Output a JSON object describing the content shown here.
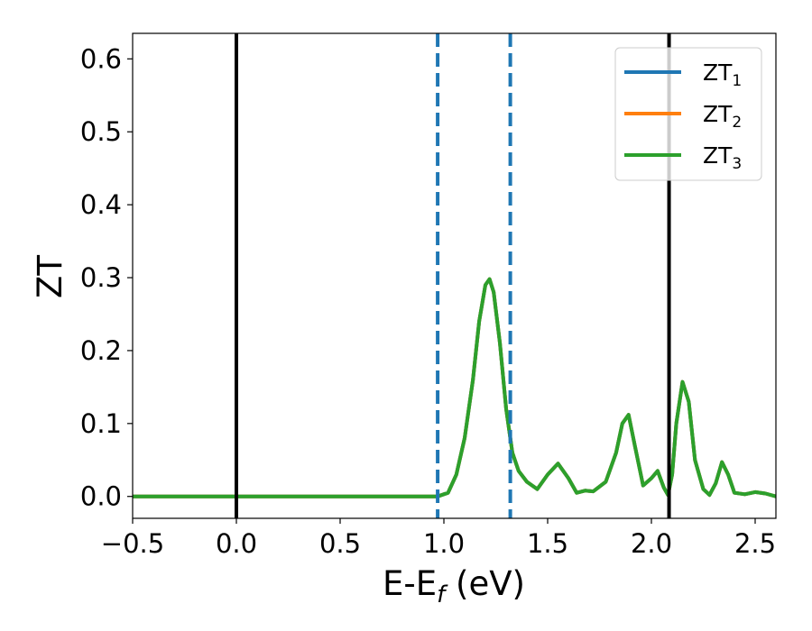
{
  "chart_data": {
    "type": "line",
    "title": "",
    "xlabel": "E-E",
    "xlabel_sub": "f",
    "xlabel_units": " (eV)",
    "ylabel": "ZT",
    "xlim": [
      -0.5,
      2.6
    ],
    "ylim": [
      -0.03,
      0.635
    ],
    "xticks": [
      -0.5,
      0.0,
      0.5,
      1.0,
      1.5,
      2.0,
      2.5
    ],
    "xtick_labels": [
      "−0.5",
      "0.0",
      "0.5",
      "1.0",
      "1.5",
      "2.0",
      "2.5"
    ],
    "yticks": [
      0.0,
      0.1,
      0.2,
      0.3,
      0.4,
      0.5,
      0.6
    ],
    "ytick_labels": [
      "0.0",
      "0.1",
      "0.2",
      "0.3",
      "0.4",
      "0.5",
      "0.6"
    ],
    "grid": false,
    "legend_position": "upper right",
    "series": [
      {
        "name": "ZT",
        "sub": "1",
        "color": "#1f77b4",
        "x": [
          -0.5,
          0.0,
          0.5,
          0.97,
          1.02,
          1.06,
          1.1,
          1.14,
          1.17,
          1.2,
          1.22,
          1.24,
          1.27,
          1.3,
          1.33,
          1.36,
          1.4,
          1.45,
          1.5,
          1.55,
          1.6,
          1.64,
          1.68,
          1.72,
          1.78,
          1.83,
          1.86,
          1.89,
          1.92,
          1.96,
          2.0,
          2.03,
          2.06,
          2.08,
          2.1,
          2.12,
          2.15,
          2.18,
          2.21,
          2.25,
          2.28,
          2.31,
          2.34,
          2.37,
          2.4,
          2.45,
          2.5,
          2.55,
          2.6
        ],
        "y": [
          0.0,
          0.0,
          0.0,
          0.0,
          0.005,
          0.03,
          0.08,
          0.16,
          0.24,
          0.29,
          0.298,
          0.28,
          0.21,
          0.12,
          0.06,
          0.035,
          0.02,
          0.01,
          0.03,
          0.045,
          0.025,
          0.005,
          0.008,
          0.007,
          0.02,
          0.06,
          0.1,
          0.112,
          0.07,
          0.015,
          0.025,
          0.035,
          0.012,
          0.002,
          0.03,
          0.1,
          0.157,
          0.13,
          0.05,
          0.01,
          0.002,
          0.018,
          0.047,
          0.03,
          0.005,
          0.003,
          0.006,
          0.004,
          0.0
        ]
      },
      {
        "name": "ZT",
        "sub": "2",
        "color": "#ff7f0e",
        "x": [
          -0.5,
          0.0,
          0.5,
          0.97,
          1.02,
          1.06,
          1.1,
          1.14,
          1.17,
          1.2,
          1.22,
          1.24,
          1.27,
          1.3,
          1.33,
          1.36,
          1.4,
          1.45,
          1.5,
          1.55,
          1.6,
          1.64,
          1.68,
          1.72,
          1.78,
          1.83,
          1.86,
          1.89,
          1.92,
          1.96,
          2.0,
          2.03,
          2.06,
          2.08,
          2.1,
          2.12,
          2.15,
          2.18,
          2.21,
          2.25,
          2.28,
          2.31,
          2.34,
          2.37,
          2.4,
          2.45,
          2.5,
          2.55,
          2.6
        ],
        "y": [
          0.0,
          0.0,
          0.0,
          0.0,
          0.005,
          0.03,
          0.08,
          0.16,
          0.24,
          0.29,
          0.298,
          0.28,
          0.21,
          0.12,
          0.06,
          0.035,
          0.02,
          0.01,
          0.03,
          0.045,
          0.025,
          0.005,
          0.008,
          0.007,
          0.02,
          0.06,
          0.1,
          0.112,
          0.07,
          0.015,
          0.025,
          0.035,
          0.012,
          0.002,
          0.03,
          0.1,
          0.157,
          0.13,
          0.05,
          0.01,
          0.002,
          0.018,
          0.047,
          0.03,
          0.005,
          0.003,
          0.006,
          0.004,
          0.0
        ]
      },
      {
        "name": "ZT",
        "sub": "3",
        "color": "#2ca02c",
        "x": [
          -0.5,
          0.0,
          0.5,
          0.97,
          1.02,
          1.06,
          1.1,
          1.14,
          1.17,
          1.2,
          1.22,
          1.24,
          1.27,
          1.3,
          1.33,
          1.36,
          1.4,
          1.45,
          1.5,
          1.55,
          1.6,
          1.64,
          1.68,
          1.72,
          1.78,
          1.83,
          1.86,
          1.89,
          1.92,
          1.96,
          2.0,
          2.03,
          2.06,
          2.08,
          2.1,
          2.12,
          2.15,
          2.18,
          2.21,
          2.25,
          2.28,
          2.31,
          2.34,
          2.37,
          2.4,
          2.45,
          2.5,
          2.55,
          2.6
        ],
        "y": [
          0.0,
          0.0,
          0.0,
          0.0,
          0.005,
          0.03,
          0.08,
          0.16,
          0.24,
          0.29,
          0.298,
          0.28,
          0.21,
          0.12,
          0.06,
          0.035,
          0.02,
          0.01,
          0.03,
          0.045,
          0.025,
          0.005,
          0.008,
          0.007,
          0.02,
          0.06,
          0.1,
          0.112,
          0.07,
          0.015,
          0.025,
          0.035,
          0.012,
          0.002,
          0.03,
          0.1,
          0.157,
          0.13,
          0.05,
          0.01,
          0.002,
          0.018,
          0.047,
          0.03,
          0.005,
          0.003,
          0.006,
          0.004,
          0.0
        ]
      }
    ],
    "vlines": [
      {
        "x": 0.0,
        "style": "solid",
        "color": "#000000"
      },
      {
        "x": 2.085,
        "style": "solid",
        "color": "#000000"
      },
      {
        "x": 0.97,
        "style": "dashed",
        "color": "#1f77b4"
      },
      {
        "x": 1.32,
        "style": "dashed",
        "color": "#1f77b4"
      }
    ]
  }
}
